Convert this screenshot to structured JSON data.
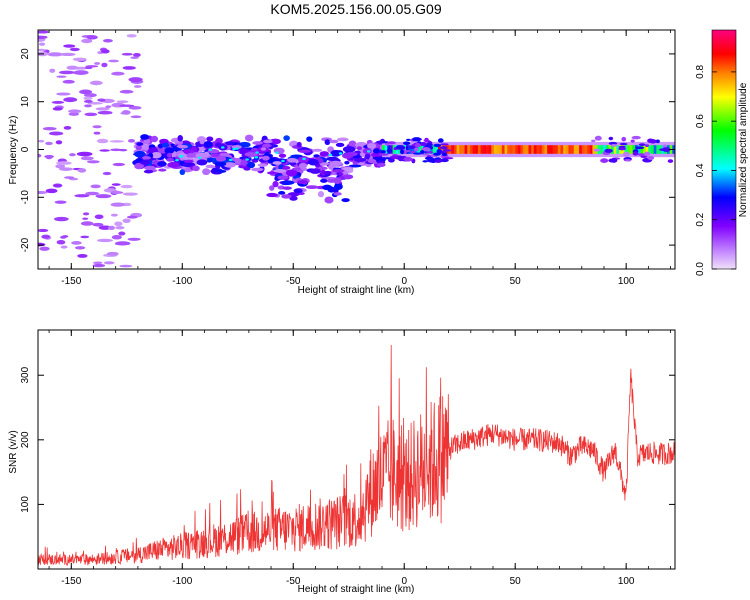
{
  "title": "KOM5.2025.156.00.05.G09",
  "chart_data": [
    {
      "type": "heatmap",
      "xlabel": "Height of straight line (km)",
      "ylabel": "Frequency (Hz)",
      "xlim": [
        -165,
        122
      ],
      "ylim": [
        -25,
        25
      ],
      "xticks": [
        -150,
        -100,
        -50,
        0,
        50,
        100
      ],
      "yticks": [
        -20,
        -10,
        0,
        10,
        20
      ],
      "colorbar": {
        "label": "Normalized spectral amplitude",
        "range": [
          0,
          0.97
        ],
        "ticks": [
          0.0,
          0.2,
          0.4,
          0.6,
          0.8
        ],
        "tick_labels": [
          "0.0",
          "0.2",
          "0.4",
          "0.6",
          "0.8"
        ],
        "colormap": [
          "#e8d0f5",
          "#9b00ff",
          "#0000ff",
          "#00ffff",
          "#00ff00",
          "#ffff00",
          "#ff8000",
          "#ff0000",
          "#ff0080"
        ]
      },
      "features": [
        {
          "x_start": -165,
          "x_end": -120,
          "freq_spread": [
            -25,
            25
          ],
          "amplitude": [
            0.05,
            0.15
          ]
        },
        {
          "x_start": -120,
          "x_end": -10,
          "freq_spread": [
            -14,
            5
          ],
          "amplitude": [
            0.1,
            0.3
          ]
        },
        {
          "x_start": -10,
          "x_end": 122,
          "freq_center": 0,
          "freq_width": 2,
          "amplitude": [
            0.3,
            0.9
          ]
        }
      ]
    },
    {
      "type": "line",
      "xlabel": "Height of straight line (km)",
      "ylabel": "SNR (v/v)",
      "xlim": [
        -165,
        122
      ],
      "ylim": [
        0,
        370
      ],
      "xticks": [
        -150,
        -100,
        -50,
        0,
        50,
        100
      ],
      "yticks": [
        100,
        200,
        300
      ],
      "line_color": "#ee3333",
      "series": [
        {
          "x": [
            -165,
            -150,
            -140,
            -130,
            -120,
            -110,
            -100,
            -90,
            -80,
            -70,
            -60,
            -50,
            -40,
            -30,
            -20,
            -15,
            -10,
            -5,
            0,
            5,
            10,
            15,
            20,
            25,
            30,
            40,
            50,
            60,
            70,
            75,
            80,
            85,
            90,
            95,
            100,
            102,
            105,
            110,
            115,
            122
          ],
          "values": [
            15,
            14,
            15,
            18,
            22,
            30,
            35,
            42,
            48,
            55,
            60,
            62,
            68,
            72,
            80,
            120,
            140,
            150,
            130,
            150,
            160,
            170,
            185,
            195,
            200,
            210,
            200,
            200,
            195,
            175,
            190,
            185,
            150,
            185,
            110,
            300,
            175,
            180,
            178,
            180
          ]
        }
      ]
    }
  ]
}
